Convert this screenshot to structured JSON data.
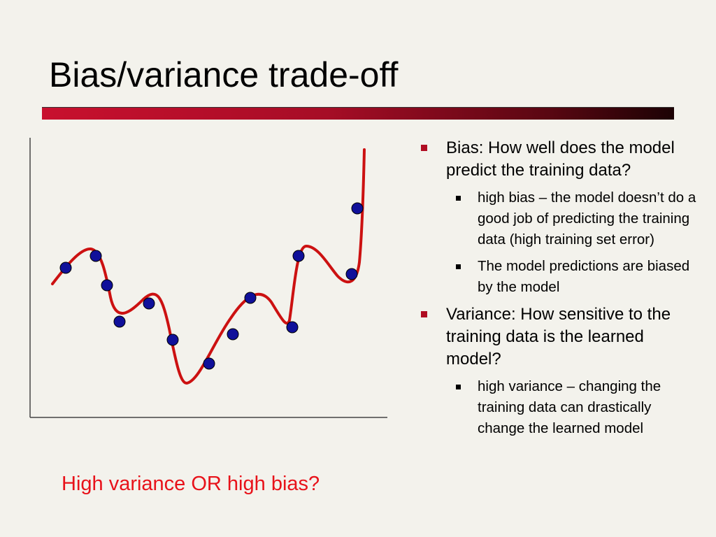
{
  "slide": {
    "title": "Bias/variance trade-off",
    "caption": "High variance OR high bias?"
  },
  "bullets": [
    {
      "text": "Bias: How well does the model predict the training data?",
      "sub": [
        "high bias – the model doesn’t do a good job of predicting the training data (high training set error)",
        "The model predictions are biased by the model"
      ]
    },
    {
      "text": "Variance: How sensitive to the training data is the learned model?",
      "sub": [
        "high variance – changing the training data can drastically change the learned model"
      ]
    }
  ],
  "colors": {
    "accent": "#b00d22",
    "curve": "#cc1111",
    "point_fill": "#10109a",
    "caption": "#e8121a"
  }
}
